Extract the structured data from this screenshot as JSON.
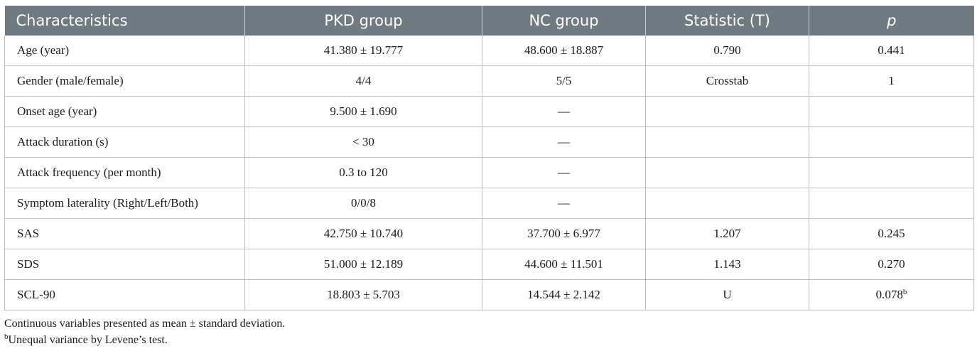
{
  "table": {
    "headers": [
      "Characteristics",
      "PKD group",
      "NC group",
      "Statistic (T)",
      "p"
    ],
    "rows": [
      [
        "Age (year)",
        "41.380 ± 19.777",
        "48.600 ± 18.887",
        "0.790",
        "0.441"
      ],
      [
        "Gender (male/female)",
        "4/4",
        "5/5",
        "Crosstab",
        "1"
      ],
      [
        "Onset age (year)",
        "9.500 ± 1.690",
        "—",
        "",
        ""
      ],
      [
        "Attack duration (s)",
        "< 30",
        "—",
        "",
        ""
      ],
      [
        "Attack frequency (per month)",
        "0.3 to 120",
        "—",
        "",
        ""
      ],
      [
        "Symptom laterality (Right/Left/Both)",
        "0/0/8",
        "—",
        "",
        ""
      ],
      [
        "SAS",
        "42.750 ± 10.740",
        "37.700 ± 6.977",
        "1.207",
        "0.245"
      ],
      [
        "SDS",
        "51.000 ± 12.189",
        "44.600 ± 11.501",
        "1.143",
        "0.270"
      ],
      [
        "SCL-90",
        "18.803 ± 5.703",
        "14.544 ± 2.142",
        "U",
        "0.078"
      ]
    ],
    "scl90_p_superscript": "b"
  },
  "footnotes": {
    "note1": "Continuous variables presented as mean ± standard deviation.",
    "note2_marker": "b",
    "note2_text": "Unequal variance by Levene’s test."
  },
  "colors": {
    "header_bg": "#6f7b80",
    "header_text": "#ffffff",
    "border": "#b9bfc2"
  }
}
